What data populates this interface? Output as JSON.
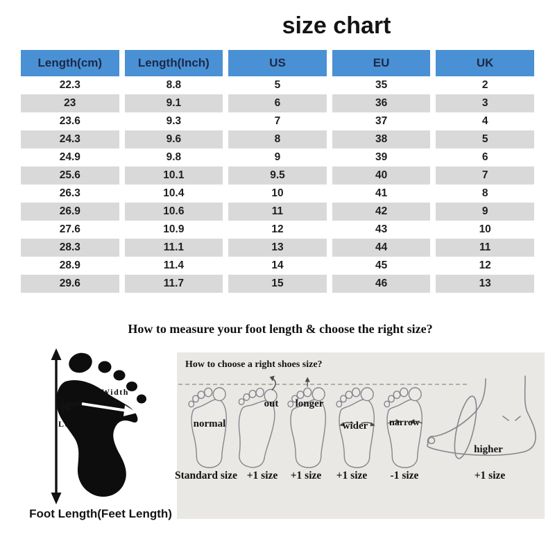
{
  "title": "size chart",
  "table": {
    "columns": [
      "Length(cm)",
      "Length(Inch)",
      "US",
      "EU",
      "UK"
    ],
    "rows": [
      [
        "22.3",
        "8.8",
        "5",
        "35",
        "2"
      ],
      [
        "23",
        "9.1",
        "6",
        "36",
        "3"
      ],
      [
        "23.6",
        "9.3",
        "7",
        "37",
        "4"
      ],
      [
        "24.3",
        "9.6",
        "8",
        "38",
        "5"
      ],
      [
        "24.9",
        "9.8",
        "9",
        "39",
        "6"
      ],
      [
        "25.6",
        "10.1",
        "9.5",
        "40",
        "7"
      ],
      [
        "26.3",
        "10.4",
        "10",
        "41",
        "8"
      ],
      [
        "26.9",
        "10.6",
        "11",
        "42",
        "9"
      ],
      [
        "27.6",
        "10.9",
        "12",
        "43",
        "10"
      ],
      [
        "28.3",
        "11.1",
        "13",
        "44",
        "11"
      ],
      [
        "28.9",
        "11.4",
        "14",
        "45",
        "12"
      ],
      [
        "29.6",
        "11.7",
        "15",
        "46",
        "13"
      ]
    ]
  },
  "measure": {
    "heading": "How to measure your foot length & choose the right size?",
    "width_label": "Width",
    "length_label": "Length",
    "caption": "Foot Length(Feet Length)"
  },
  "guide": {
    "heading": "How to choose a right shoes size?",
    "options": [
      {
        "label": "normal",
        "size": "Standard size"
      },
      {
        "label": "out",
        "size": "+1 size"
      },
      {
        "label": "longer",
        "size": "+1 size"
      },
      {
        "label": "wider",
        "size": "+1 size"
      },
      {
        "label": "narrow",
        "size": "-1 size"
      },
      {
        "label": "higher",
        "size": "+1 size"
      }
    ]
  },
  "colors": {
    "header_bg": "#4a90d4",
    "header_text": "#1b2947",
    "alt_row": "#d9d9d9",
    "panel_bg": "#e9e8e4",
    "footprint": "#0d0d0d"
  }
}
